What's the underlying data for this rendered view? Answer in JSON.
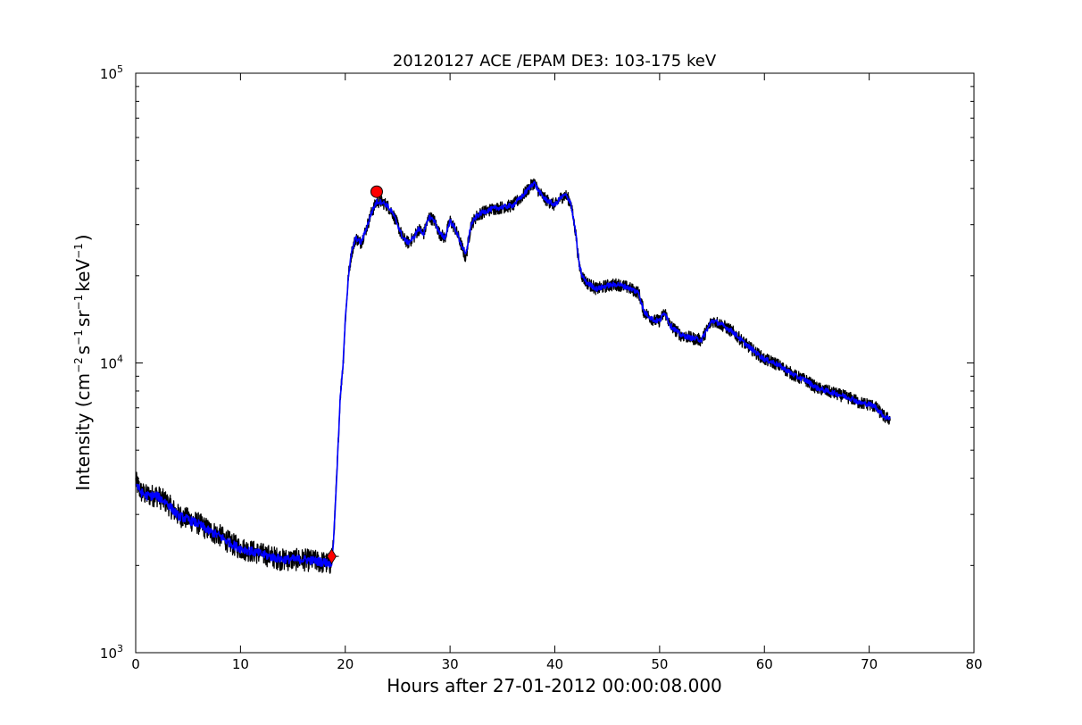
{
  "chart_data": {
    "type": "line",
    "title": "20120127 ACE /EPAM DE3: 103-175 keV",
    "xlabel": "Hours after 27-01-2012 00:00:08.000",
    "ylabel": {
      "prefix": "Intensity (cm",
      "sup1": "−2",
      "part2": "s",
      "sup2": "−1",
      "part3": "sr",
      "sup3": "−1",
      "part4": "keV",
      "sup4": "−1",
      "suffix": ")"
    },
    "xlim": [
      0,
      80
    ],
    "ylim": [
      1000,
      100000
    ],
    "yscale": "log",
    "grid": false,
    "x_ticks": [
      0,
      10,
      20,
      30,
      40,
      50,
      60,
      70,
      80
    ],
    "x_tick_labels": [
      "0",
      "10",
      "20",
      "30",
      "40",
      "50",
      "60",
      "70",
      "80"
    ],
    "y_ticks": [
      {
        "value": 1000,
        "base": "10",
        "exp": "3"
      },
      {
        "value": 10000,
        "base": "10",
        "exp": "4"
      },
      {
        "value": 100000,
        "base": "10",
        "exp": "5"
      }
    ],
    "series": [
      {
        "color": "#000000",
        "style": "noisy-envelope",
        "x": [
          0,
          0.5,
          1,
          2,
          3,
          4,
          5,
          6,
          7,
          8,
          9,
          10,
          11,
          12,
          13,
          14,
          15,
          16,
          17,
          18,
          18.5,
          18.7,
          18.9,
          19.1,
          19.3,
          19.5,
          19.8,
          20.0,
          20.3,
          20.6,
          21,
          21.5,
          22,
          22.5,
          23,
          23.5,
          24,
          24.5,
          25,
          25.5,
          26,
          26.5,
          27,
          27.5,
          28,
          28.5,
          29,
          29.5,
          30,
          30.5,
          31,
          31.5,
          32,
          32.5,
          33,
          34,
          35,
          36,
          37,
          37.5,
          38,
          38.5,
          39,
          40,
          40.5,
          41,
          41.5,
          42,
          42.3,
          42.6,
          43,
          43.5,
          44,
          45,
          46,
          47,
          48,
          48.5,
          49,
          49.5,
          50,
          50.5,
          51,
          51.5,
          52,
          53,
          54,
          54.5,
          55,
          55.5,
          56,
          57,
          58,
          59,
          60,
          61,
          62,
          63,
          64,
          65,
          66,
          67,
          68,
          68.5,
          69,
          70,
          70.5,
          71,
          71.5,
          72
        ],
        "values": [
          3900,
          3600,
          3500,
          3500,
          3300,
          3000,
          2900,
          2800,
          2650,
          2550,
          2400,
          2300,
          2250,
          2200,
          2150,
          2100,
          2100,
          2100,
          2080,
          2050,
          2030,
          2050,
          2500,
          3500,
          5000,
          7500,
          10000,
          14000,
          20000,
          24000,
          27000,
          26000,
          29000,
          33000,
          36000,
          36000,
          35000,
          33000,
          30000,
          27000,
          26000,
          27000,
          29000,
          28000,
          32000,
          31000,
          28000,
          27000,
          31000,
          29000,
          26000,
          23000,
          30000,
          32000,
          33000,
          34000,
          34500,
          35000,
          38000,
          40000,
          42000,
          39000,
          37000,
          35000,
          37000,
          38000,
          36000,
          28000,
          22000,
          20000,
          19000,
          18500,
          18000,
          18500,
          18700,
          18200,
          17500,
          15000,
          14500,
          14000,
          14000,
          15000,
          13500,
          13000,
          12500,
          12200,
          12000,
          13000,
          14000,
          13800,
          13500,
          12800,
          11800,
          11000,
          10300,
          10000,
          9500,
          9000,
          8700,
          8200,
          8000,
          7800,
          7600,
          7500,
          7300,
          7200,
          7100,
          6800,
          6500,
          6400
        ]
      },
      {
        "color": "#0000ff",
        "style": "smoothed",
        "x": [
          0,
          0.5,
          1,
          2,
          3,
          4,
          5,
          6,
          7,
          8,
          9,
          10,
          11,
          12,
          13,
          14,
          15,
          16,
          17,
          18,
          18.5,
          18.7,
          18.9,
          19.1,
          19.3,
          19.5,
          19.8,
          20.0,
          20.3,
          20.6,
          21,
          21.5,
          22,
          22.5,
          23,
          23.5,
          24,
          24.5,
          25,
          25.5,
          26,
          26.5,
          27,
          27.5,
          28,
          28.5,
          29,
          29.5,
          30,
          30.5,
          31,
          31.5,
          32,
          32.5,
          33,
          34,
          35,
          36,
          37,
          37.5,
          38,
          38.5,
          39,
          40,
          40.5,
          41,
          41.5,
          42,
          42.3,
          42.6,
          43,
          43.5,
          44,
          45,
          46,
          47,
          48,
          48.5,
          49,
          49.5,
          50,
          50.5,
          51,
          51.5,
          52,
          53,
          54,
          54.5,
          55,
          55.5,
          56,
          57,
          58,
          59,
          60,
          61,
          62,
          63,
          64,
          65,
          66,
          67,
          68,
          68.5,
          69,
          70,
          70.5,
          71,
          71.5,
          72
        ],
        "values": [
          3850,
          3580,
          3480,
          3480,
          3280,
          2980,
          2880,
          2780,
          2630,
          2530,
          2390,
          2290,
          2240,
          2190,
          2140,
          2100,
          2100,
          2100,
          2080,
          2050,
          2040,
          2060,
          2500,
          3500,
          5000,
          7400,
          10000,
          14000,
          20000,
          24000,
          27000,
          26000,
          29000,
          33000,
          36000,
          36000,
          35000,
          33000,
          30000,
          27000,
          26000,
          27000,
          29000,
          28000,
          32000,
          31000,
          28000,
          27000,
          31000,
          29000,
          26000,
          23500,
          30000,
          32000,
          33000,
          34000,
          34500,
          35000,
          38000,
          40000,
          42000,
          39000,
          37000,
          35000,
          37000,
          38000,
          36000,
          28000,
          22000,
          20000,
          19000,
          18500,
          18000,
          18500,
          18700,
          18200,
          17500,
          15000,
          14500,
          14000,
          14000,
          15000,
          13500,
          13000,
          12500,
          12200,
          12000,
          13000,
          14000,
          13800,
          13500,
          12800,
          11800,
          11000,
          10300,
          10000,
          9500,
          9000,
          8700,
          8200,
          8000,
          7800,
          7600,
          7500,
          7300,
          7200,
          7100,
          6800,
          6500,
          6450
        ]
      }
    ],
    "markers": [
      {
        "shape": "diamond",
        "x": 18.7,
        "y": 2150,
        "color": "#ff0000"
      },
      {
        "shape": "circle",
        "x": 23.0,
        "y": 39000,
        "color": "#ff0000"
      }
    ]
  }
}
